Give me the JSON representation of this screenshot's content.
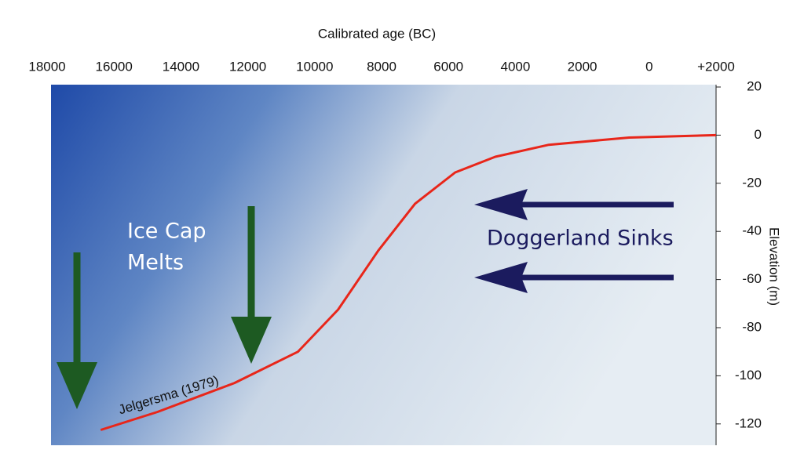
{
  "chart_data": {
    "type": "line",
    "xlabel": "Calibrated age (BC)",
    "ylabel": "Elevation (m)",
    "x": [
      16400,
      14700,
      12400,
      10500,
      9300,
      8100,
      7000,
      5800,
      4600,
      3000,
      600,
      -2000
    ],
    "series": [
      {
        "name": "Jelgersma (1979)",
        "color": "#e8261a",
        "values": [
          -122.5,
          -115,
          -103,
          -90,
          -72.5,
          -48,
          -28.5,
          -15.5,
          -9,
          -4,
          -1,
          0
        ]
      }
    ],
    "xlim": [
      18000,
      -2000
    ],
    "xticks": [
      18000,
      16000,
      14000,
      12000,
      10000,
      8000,
      6000,
      4000,
      2000,
      0,
      {
        "value": -2000,
        "label": "+2000"
      }
    ],
    "ylim": [
      -130,
      20
    ],
    "yticks": [
      20,
      0,
      -20,
      -40,
      -60,
      -80,
      -100,
      -120
    ],
    "grid": false,
    "annotations": [
      "Ice Cap",
      "Melts",
      "Doggerland Sinks"
    ]
  }
}
